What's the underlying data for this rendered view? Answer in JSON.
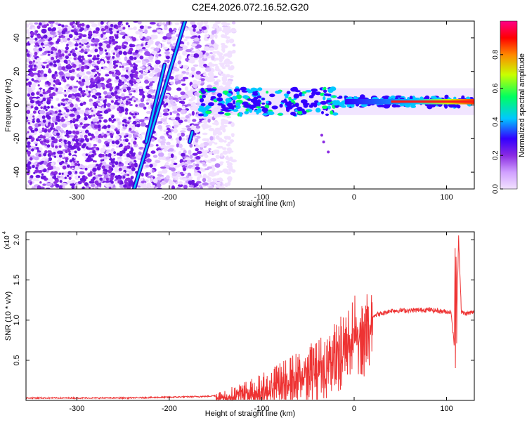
{
  "title": "C2E4.2026.072.16.52.G20",
  "spectrogram": {
    "xlabel": "Height of straight line (km)",
    "ylabel": "Frequency (Hz)",
    "xlim": [
      -355,
      130
    ],
    "ylim": [
      -50,
      50
    ],
    "xticks": [
      -300,
      -200,
      -100,
      0,
      100
    ],
    "yticks": [
      -40,
      -20,
      0,
      20,
      40
    ]
  },
  "colorbar": {
    "label": "Normalized spectral amplitude",
    "range": [
      0,
      1
    ],
    "ticks": [
      "0.0",
      "0.2",
      "0.4",
      "0.6",
      "0.8"
    ],
    "tick_values": [
      0.0,
      0.2,
      0.4,
      0.6,
      0.8
    ],
    "colors": [
      "#f2e2ff",
      "#d0a0ff",
      "#8a2be2",
      "#3300ff",
      "#00c8ff",
      "#00ff60",
      "#c8ff00",
      "#ff8800",
      "#ff0000",
      "#ff0088"
    ]
  },
  "chart_data": [
    {
      "type": "heatmap",
      "xlabel": "Height of straight line (km)",
      "ylabel": "Frequency (Hz)",
      "xlim": [
        -355,
        130
      ],
      "ylim": [
        -50,
        50
      ],
      "features": {
        "noise_region_x": [
          -355,
          -150
        ],
        "signal_band_center_hz": 2,
        "signal_starts_x": -170,
        "strong_line_x": [
          -10,
          130
        ],
        "diagonal_tracks": [
          {
            "x": [
              -238,
              -183
            ],
            "y": [
              -50,
              50
            ]
          },
          {
            "x": [
              -225,
              -205
            ],
            "y": [
              -22,
              24
            ]
          },
          {
            "x": [
              -178,
              -175
            ],
            "y": [
              -22,
              -16
            ]
          }
        ]
      }
    },
    {
      "type": "line",
      "xlabel": "Height of straight line (km)",
      "ylabel": "SNR (10 * v/v)",
      "scale_label": "(x10",
      "scale_exp": "4",
      "xlim": [
        -355,
        130
      ],
      "ylim": [
        0,
        2.1
      ],
      "xticks": [
        -300,
        -200,
        -100,
        0,
        100
      ],
      "yticks": [
        0.5,
        1.0,
        1.5,
        2.0
      ],
      "ytick_labels": [
        "0.5",
        "1.0",
        "1.5",
        "2.0"
      ],
      "color": "#ee3333",
      "series": [
        {
          "x": [
            -355,
            -300,
            -250,
            -200,
            -160,
            -140,
            -120,
            -100,
            -80,
            -60,
            -40,
            -25,
            -15,
            -5,
            0,
            5,
            10,
            20,
            30,
            40,
            60,
            80,
            95,
            105,
            110,
            113,
            116,
            120,
            130
          ],
          "y": [
            0.03,
            0.03,
            0.03,
            0.04,
            0.05,
            0.07,
            0.12,
            0.18,
            0.28,
            0.38,
            0.5,
            0.6,
            0.75,
            0.9,
            0.95,
            0.98,
            1.02,
            1.06,
            1.08,
            1.12,
            1.12,
            1.13,
            1.11,
            1.1,
            0.45,
            2.05,
            1.1,
            1.08,
            1.1
          ]
        }
      ]
    }
  ]
}
